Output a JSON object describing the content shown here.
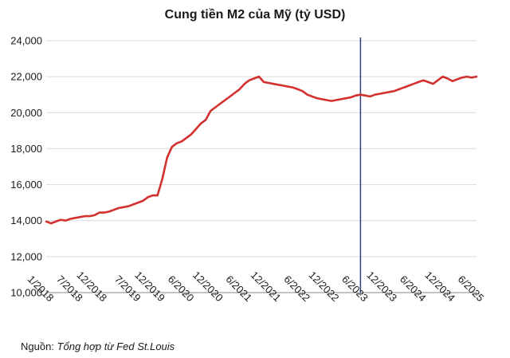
{
  "chart_data": {
    "type": "line",
    "title": "Cung tiền M2 của Mỹ (tỷ USD)",
    "xlabel": "",
    "ylabel": "",
    "ylim": [
      10000,
      24000
    ],
    "yticks": [
      "10,000",
      "12,000",
      "14,000",
      "16,000",
      "18,000",
      "20,000",
      "22,000",
      "24,000"
    ],
    "xticks": [
      "1/2018",
      "7/2018",
      "12/2018",
      "7/2019",
      "12/2019",
      "6/2020",
      "12/2020",
      "6/2021",
      "12/2021",
      "6/2022",
      "12/2022",
      "6/2023",
      "12/2023",
      "6/2024",
      "12/2024",
      "6/2025"
    ],
    "vertical_marker": "6/2023",
    "grid": "horizontal",
    "series": [
      {
        "color": "#d3312f",
        "x": [
          "1/2018",
          "2/2018",
          "3/2018",
          "4/2018",
          "5/2018",
          "6/2018",
          "7/2018",
          "8/2018",
          "9/2018",
          "10/2018",
          "11/2018",
          "12/2018",
          "1/2019",
          "2/2019",
          "3/2019",
          "4/2019",
          "5/2019",
          "6/2019",
          "7/2019",
          "8/2019",
          "9/2019",
          "10/2019",
          "11/2019",
          "12/2019",
          "1/2020",
          "2/2020",
          "3/2020",
          "4/2020",
          "5/2020",
          "6/2020",
          "7/2020",
          "8/2020",
          "9/2020",
          "10/2020",
          "11/2020",
          "12/2020",
          "1/2021",
          "2/2021",
          "3/2021",
          "4/2021",
          "5/2021",
          "6/2021",
          "7/2021",
          "8/2021",
          "9/2021",
          "10/2021",
          "11/2021",
          "12/2021",
          "1/2022",
          "2/2022",
          "3/2022",
          "4/2022",
          "5/2022",
          "6/2022",
          "7/2022",
          "8/2022",
          "9/2022",
          "10/2022",
          "11/2022",
          "12/2022",
          "1/2023",
          "2/2023",
          "3/2023",
          "4/2023",
          "5/2023",
          "6/2023",
          "7/2023",
          "8/2023",
          "9/2023",
          "10/2023",
          "11/2023",
          "12/2023",
          "1/2024",
          "2/2024",
          "3/2024",
          "4/2024",
          "5/2024",
          "6/2024",
          "7/2024",
          "8/2024",
          "9/2024",
          "10/2024",
          "11/2024",
          "12/2024",
          "1/2025",
          "2/2025",
          "3/2025",
          "4/2025",
          "5/2025",
          "6/2025"
        ],
        "values": [
          13950,
          13850,
          13950,
          14050,
          14000,
          14100,
          14150,
          14200,
          14250,
          14250,
          14300,
          14450,
          14450,
          14500,
          14600,
          14700,
          14750,
          14800,
          14900,
          15000,
          15100,
          15300,
          15400,
          15400,
          16300,
          17500,
          18100,
          18300,
          18400,
          18600,
          18800,
          19100,
          19400,
          19600,
          20100,
          20300,
          20500,
          20700,
          20900,
          21100,
          21300,
          21600,
          21800,
          21900,
          22000,
          21700,
          21650,
          21600,
          21550,
          21500,
          21450,
          21400,
          21300,
          21200,
          21000,
          20900,
          20800,
          20750,
          20700,
          20650,
          20700,
          20750,
          20800,
          20850,
          20950,
          21000,
          20950,
          20900,
          21000,
          21050,
          21100,
          21150,
          21200,
          21300,
          21400,
          21500,
          21600,
          21700,
          21800,
          21700,
          21600,
          21800,
          22000,
          21900,
          21750,
          21850,
          21950,
          22000,
          21950,
          22000
        ]
      }
    ]
  },
  "source": {
    "label": "Nguồn:",
    "text": "Tổng hợp từ Fed St.Louis"
  }
}
